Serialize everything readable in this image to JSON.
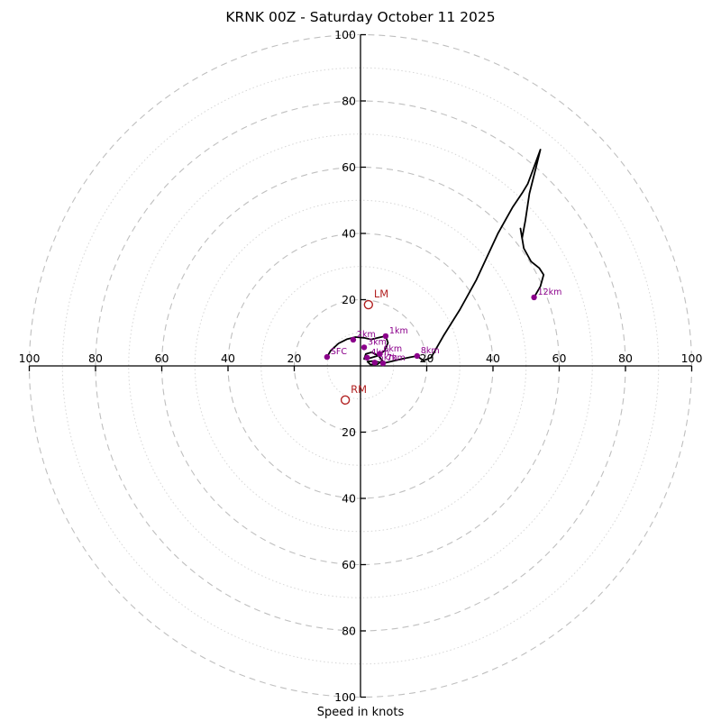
{
  "chart_data": {
    "type": "line",
    "subtype": "hodograph",
    "title": "KRNK 00Z - Saturday October 11 2025",
    "xlabel": "Speed in knots",
    "axis_max": 100,
    "axis_ticks": [
      20,
      40,
      60,
      80,
      100
    ],
    "dashed_rings": [
      20,
      40,
      60,
      80,
      100
    ],
    "dotted_rings": [
      10,
      30,
      50,
      70,
      90
    ],
    "grid": true,
    "trace_color": "#000000",
    "marker_color": "#8b008b",
    "storm_motion_color": "#b22222",
    "trace_uv_knots": [
      [
        -10.1,
        2.7
      ],
      [
        -9.0,
        4.6
      ],
      [
        -6.6,
        6.8
      ],
      [
        -4.0,
        8.1
      ],
      [
        -1.5,
        8.7
      ],
      [
        1.0,
        8.5
      ],
      [
        3.2,
        8.0
      ],
      [
        5.3,
        8.5
      ],
      [
        7.6,
        9.0
      ],
      [
        8.3,
        7.0
      ],
      [
        7.3,
        4.6
      ],
      [
        5.0,
        3.0
      ],
      [
        2.7,
        2.3
      ],
      [
        1.1,
        2.1
      ],
      [
        1.6,
        3.6
      ],
      [
        3.4,
        4.1
      ],
      [
        5.4,
        3.1
      ],
      [
        6.6,
        1.6
      ],
      [
        5.1,
        0.5
      ],
      [
        3.0,
        0.4
      ],
      [
        2.1,
        1.3
      ],
      [
        4.1,
        1.5
      ],
      [
        6.8,
        0.8
      ],
      [
        9.5,
        1.4
      ],
      [
        12.5,
        2.1
      ],
      [
        15.0,
        2.6
      ],
      [
        17.1,
        3.0
      ],
      [
        19.0,
        1.6
      ],
      [
        21.3,
        2.5
      ],
      [
        25.0,
        9.0
      ],
      [
        30.0,
        17.0
      ],
      [
        35.0,
        26.0
      ],
      [
        41.5,
        40.0
      ],
      [
        46.0,
        48.0
      ],
      [
        49.0,
        52.5
      ],
      [
        50.5,
        55.0
      ],
      [
        52.0,
        59.0
      ],
      [
        54.3,
        65.3
      ],
      [
        53.0,
        60.0
      ],
      [
        51.0,
        52.0
      ],
      [
        49.8,
        44.0
      ],
      [
        48.8,
        38.5
      ],
      [
        48.3,
        41.5
      ],
      [
        49.3,
        35.5
      ],
      [
        51.5,
        31.5
      ],
      [
        54.0,
        29.5
      ],
      [
        55.3,
        27.5
      ],
      [
        54.3,
        24.0
      ],
      [
        52.4,
        20.7
      ]
    ],
    "altitude_markers": [
      {
        "label": "SFC",
        "u": -10.1,
        "v": 2.7
      },
      {
        "label": "1km",
        "u": 7.6,
        "v": 9.0
      },
      {
        "label": "2km",
        "u": -2.2,
        "v": 7.9
      },
      {
        "label": "3km",
        "u": 1.1,
        "v": 5.6
      },
      {
        "label": "4km",
        "u": 2.0,
        "v": 2.5
      },
      {
        "label": "5km",
        "u": 4.3,
        "v": 1.0
      },
      {
        "label": "6km",
        "u": 5.8,
        "v": 3.6
      },
      {
        "label": "7km",
        "u": 6.8,
        "v": 0.8
      },
      {
        "label": "8km",
        "u": 17.1,
        "v": 3.0
      },
      {
        "label": "12km",
        "u": 52.4,
        "v": 20.7
      }
    ],
    "storm_motions": [
      {
        "label": "LM",
        "u": 2.4,
        "v": 18.5
      },
      {
        "label": "RM",
        "u": -4.6,
        "v": -10.3
      }
    ]
  }
}
